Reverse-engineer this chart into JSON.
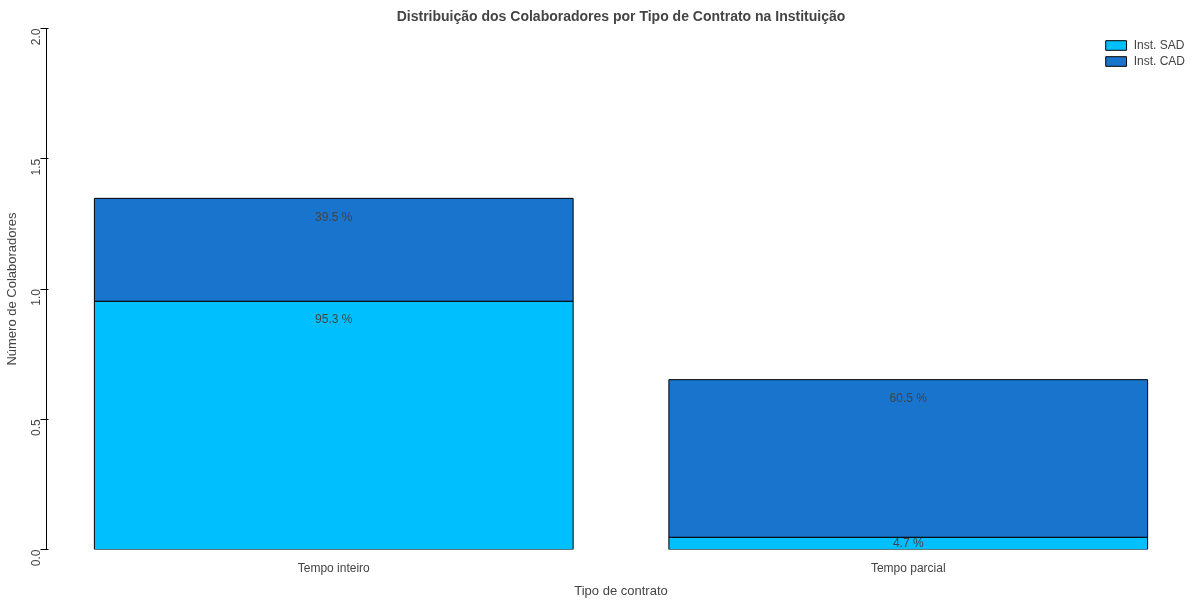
{
  "chart_data": {
    "type": "bar",
    "title": "Distribuição dos Colaboradores por Tipo de Contrato na Instituição",
    "xlabel": "Tipo de contrato",
    "ylabel": "Número de Colaboradores",
    "categories": [
      "Tempo inteiro",
      "Tempo parcial"
    ],
    "stacked": true,
    "series": [
      {
        "name": "Inst. SAD",
        "color": "#00bfff",
        "values": [
          0.953,
          0.047
        ],
        "value_labels": [
          "95.3 %",
          "4.7 %"
        ]
      },
      {
        "name": "Inst. CAD",
        "color": "#1874cd",
        "values": [
          0.395,
          0.605
        ],
        "value_labels": [
          "39.5 %",
          "60.5 %"
        ]
      }
    ],
    "ylim": [
      0,
      2
    ],
    "yticks": [
      {
        "value": 0,
        "label": "0.0"
      },
      0.5,
      {
        "value": 1,
        "label": "1.0"
      },
      1.5,
      {
        "value": 2,
        "label": "2.0"
      }
    ],
    "grid": false,
    "legend": "top right"
  }
}
